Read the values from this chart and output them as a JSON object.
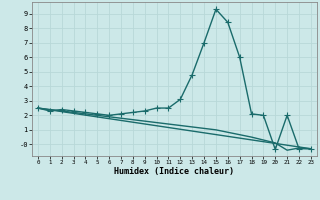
{
  "xlabel": "Humidex (Indice chaleur)",
  "bg_color": "#cce8e8",
  "grid_color": "#b8d8d8",
  "line_color": "#1a6b6b",
  "xlim": [
    -0.5,
    23.5
  ],
  "ylim": [
    -0.8,
    9.8
  ],
  "xticks": [
    0,
    1,
    2,
    3,
    4,
    5,
    6,
    7,
    8,
    9,
    10,
    11,
    12,
    13,
    14,
    15,
    16,
    17,
    18,
    19,
    20,
    21,
    22,
    23
  ],
  "yticks": [
    0,
    1,
    2,
    3,
    4,
    5,
    6,
    7,
    8,
    9
  ],
  "ytick_labels": [
    "-0",
    "1",
    "2",
    "3",
    "4",
    "5",
    "6",
    "7",
    "8",
    "9"
  ],
  "curve1_x": [
    0,
    1,
    2,
    3,
    4,
    5,
    6,
    7,
    8,
    9,
    10,
    11,
    12,
    13,
    14,
    15,
    16,
    17,
    18,
    19,
    20,
    21,
    22,
    23
  ],
  "curve1_y": [
    2.5,
    2.3,
    2.4,
    2.3,
    2.2,
    2.1,
    2.0,
    2.1,
    2.2,
    2.3,
    2.5,
    2.5,
    3.1,
    4.8,
    7.0,
    9.3,
    8.4,
    6.0,
    2.1,
    2.0,
    -0.35,
    2.0,
    -0.3,
    -0.3
  ],
  "curve2_x": [
    0,
    5,
    10,
    15,
    18,
    20,
    21,
    22,
    23
  ],
  "curve2_y": [
    2.5,
    2.0,
    1.5,
    1.0,
    0.5,
    0.1,
    -0.4,
    -0.25,
    -0.3
  ],
  "curve3_x": [
    0,
    23
  ],
  "curve3_y": [
    2.5,
    -0.3
  ],
  "marker": "+",
  "markersize": 4,
  "linewidth": 1.0
}
